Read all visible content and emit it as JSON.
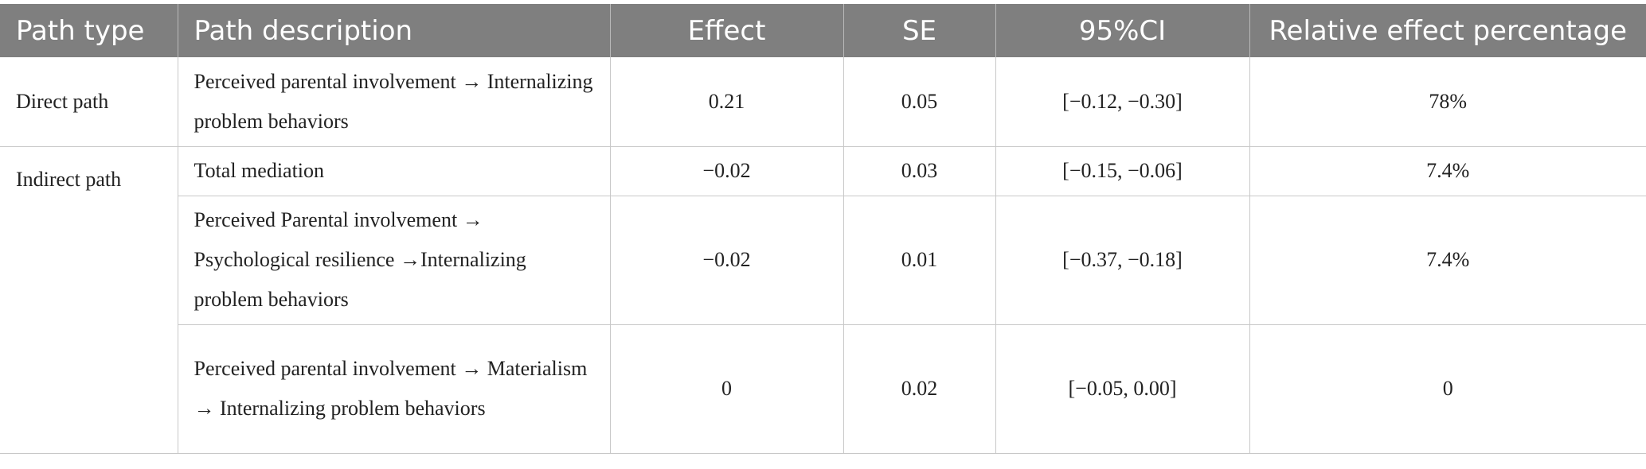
{
  "table": {
    "headers": [
      "Path type",
      "Path description",
      "Effect",
      "SE",
      "95%CI",
      "Relative effect percentage"
    ],
    "rows": [
      {
        "path_type": "Direct path",
        "description": "Perceived parental involvement → Internalizing problem behaviors",
        "effect": "0.21",
        "se": "0.05",
        "ci": "[−0.12, −0.30]",
        "relative": "78%"
      },
      {
        "path_type": "Indirect path",
        "description": "Total mediation",
        "effect": "−0.02",
        "se": "0.03",
        "ci": "[−0.15, −0.06]",
        "relative": "7.4%"
      },
      {
        "description": "Perceived Parental involvement → Psychological resilience →Internalizing problem behaviors",
        "effect": "−0.02",
        "se": "0.01",
        "ci": "[−0.37, −0.18]",
        "relative": "7.4%"
      },
      {
        "description": "Perceived parental involvement → Materialism → Internalizing problem behaviors",
        "effect": "0",
        "se": "0.02",
        "ci": "[−0.05, 0.00]",
        "relative": "0"
      }
    ]
  }
}
